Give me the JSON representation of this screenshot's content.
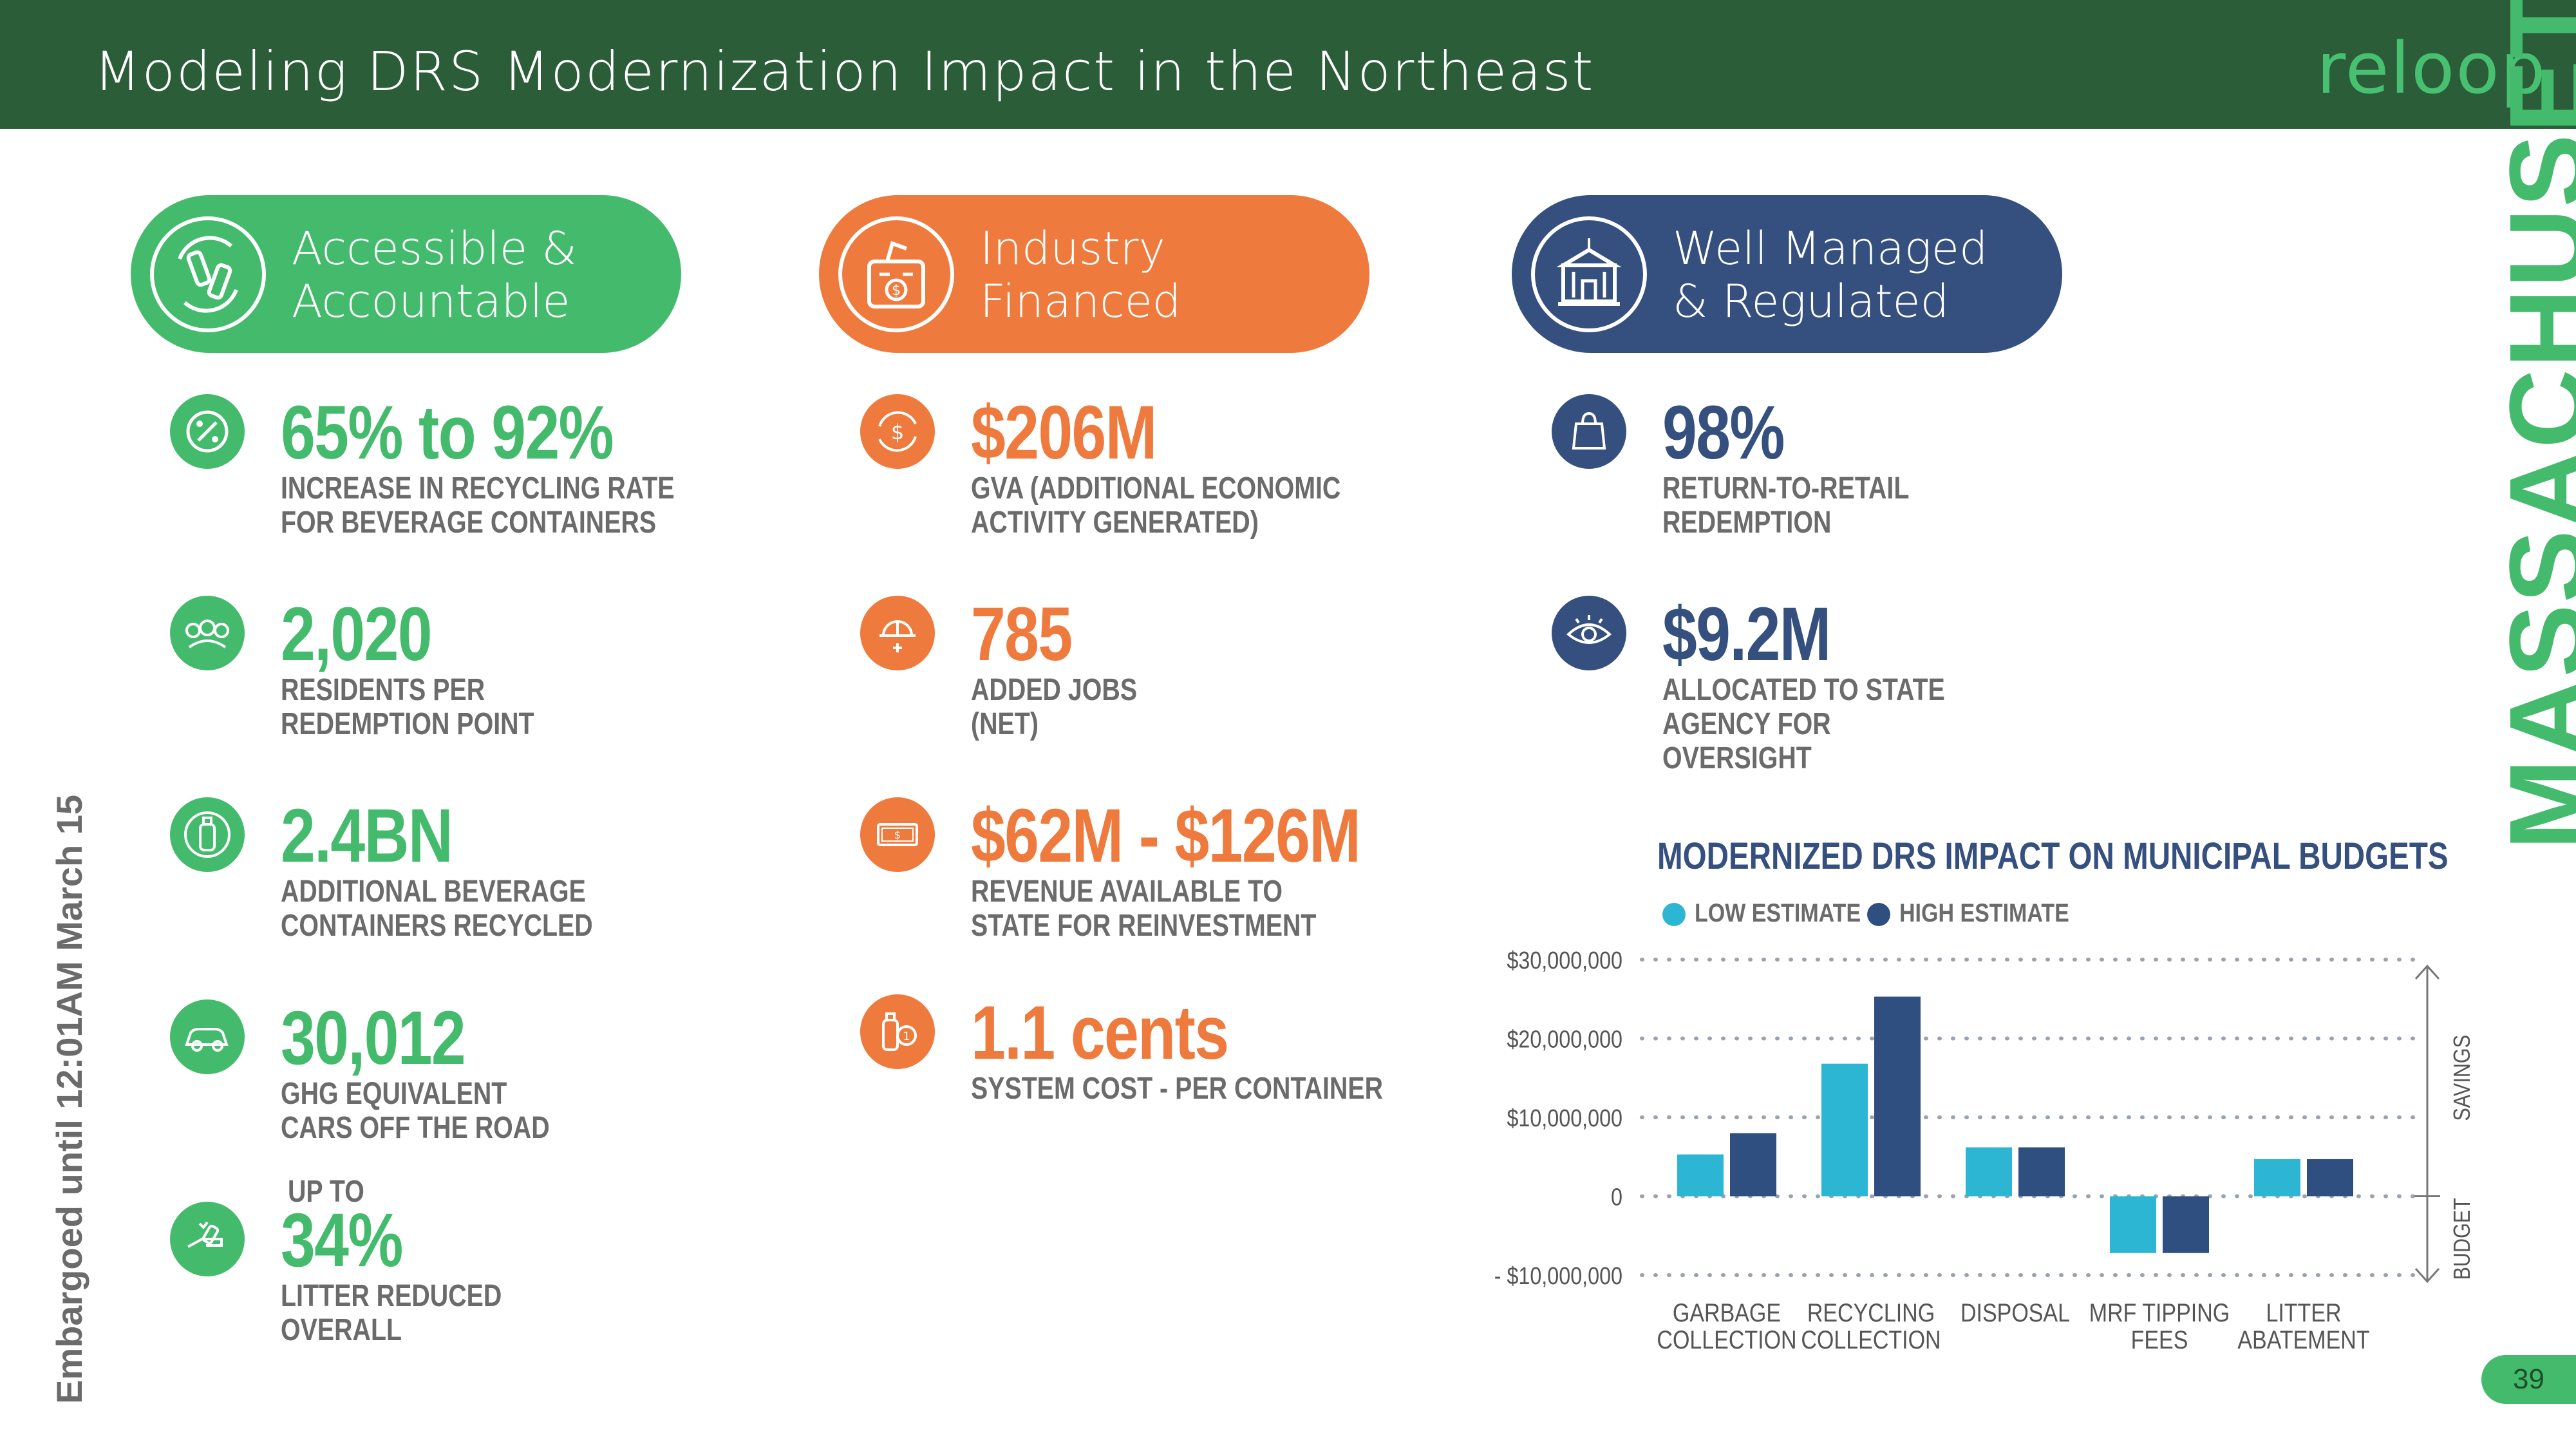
{
  "header": {
    "title": "Modeling DRS Modernization Impact in the Northeast",
    "logo": "reloop"
  },
  "state_label": "MASSACHUSETTS",
  "embargo": "Embargoed until 12:01AM March 15",
  "page_number": "39",
  "colors": {
    "green": "#44bb6c",
    "orange": "#ef7a3d",
    "navy": "#35507f",
    "header": "#2a5d38",
    "low_estimate": "#2cb6d3",
    "high_estimate": "#2f4f80"
  },
  "pillars": [
    {
      "label_line1": "Accessible &",
      "label_line2": "Accountable",
      "icon": "recycle-bottles-icon"
    },
    {
      "label_line1": "Industry",
      "label_line2": "Financed",
      "icon": "money-bin-icon"
    },
    {
      "label_line1": "Well Managed",
      "label_line2": "& Regulated",
      "icon": "government-building-icon"
    }
  ],
  "stats": {
    "green": [
      {
        "value": "65% to 92%",
        "line1": "INCREASE IN RECYCLING RATE",
        "line2": "FOR BEVERAGE CONTAINERS",
        "icon": "percent-recycle-icon"
      },
      {
        "value": "2,020",
        "line1": "RESIDENTS PER",
        "line2": "REDEMPTION POINT",
        "icon": "people-icon"
      },
      {
        "value": "2.4BN",
        "line1": "ADDITIONAL BEVERAGE",
        "line2": "CONTAINERS RECYCLED",
        "icon": "bottle-icon"
      },
      {
        "value": "30,012",
        "line1": "GHG EQUIVALENT",
        "line2": "CARS OFF THE ROAD",
        "icon": "car-icon"
      },
      {
        "prefix": "UP TO",
        "value": "34%",
        "line1": "LITTER REDUCED",
        "line2": "OVERALL",
        "icon": "litter-hand-icon"
      }
    ],
    "orange": [
      {
        "value": "$206M",
        "line1": "GVA (ADDITIONAL ECONOMIC",
        "line2": "ACTIVITY GENERATED)",
        "icon": "money-cycle-icon"
      },
      {
        "value": "785",
        "line1": "ADDED JOBS",
        "line2": "(NET)",
        "icon": "worker-helmet-icon"
      },
      {
        "value": "$62M - $126M",
        "line1": "REVENUE AVAILABLE TO",
        "line2": "STATE FOR REINVESTMENT",
        "icon": "banknote-icon"
      },
      {
        "value": "1.1 cents",
        "line1": "SYSTEM COST - PER CONTAINER",
        "line2": "",
        "icon": "bottle-coin-icon"
      }
    ],
    "navy": [
      {
        "value": "98%",
        "line1": "RETURN-TO-RETAIL",
        "line2": "REDEMPTION",
        "line3": "",
        "icon": "shopping-bag-icon"
      },
      {
        "value": "$9.2M",
        "line1": "ALLOCATED TO STATE",
        "line2": "AGENCY FOR",
        "line3": "OVERSIGHT",
        "icon": "eye-icon"
      }
    ]
  },
  "chart_data": {
    "type": "bar",
    "title": "MODERNIZED DRS IMPACT ON MUNICIPAL BUDGETS",
    "categories": [
      [
        "GARBAGE",
        "COLLECTION"
      ],
      [
        "RECYCLING",
        "COLLECTION"
      ],
      [
        "DISPOSAL",
        ""
      ],
      [
        "MRF TIPPING",
        "FEES"
      ],
      [
        "LITTER",
        "ABATEMENT"
      ]
    ],
    "series": [
      {
        "name": "LOW ESTIMATE",
        "values": [
          5300000,
          16800000,
          6200000,
          -7200000,
          4700000
        ]
      },
      {
        "name": "HIGH ESTIMATE",
        "values": [
          8000000,
          25300000,
          6200000,
          -7200000,
          4700000
        ]
      }
    ],
    "ylim": [
      -10000000,
      30000000
    ],
    "yticks": [
      -10000000,
      0,
      10000000,
      20000000,
      30000000
    ],
    "ytick_labels": [
      "- $10,000,000",
      "0",
      "$10,000,000",
      "$20,000,000",
      "$30,000,000"
    ],
    "right_labels": {
      "top": "SAVINGS",
      "bottom": "BUDGET"
    },
    "grid": "dotted",
    "legend_position": "top-left"
  }
}
